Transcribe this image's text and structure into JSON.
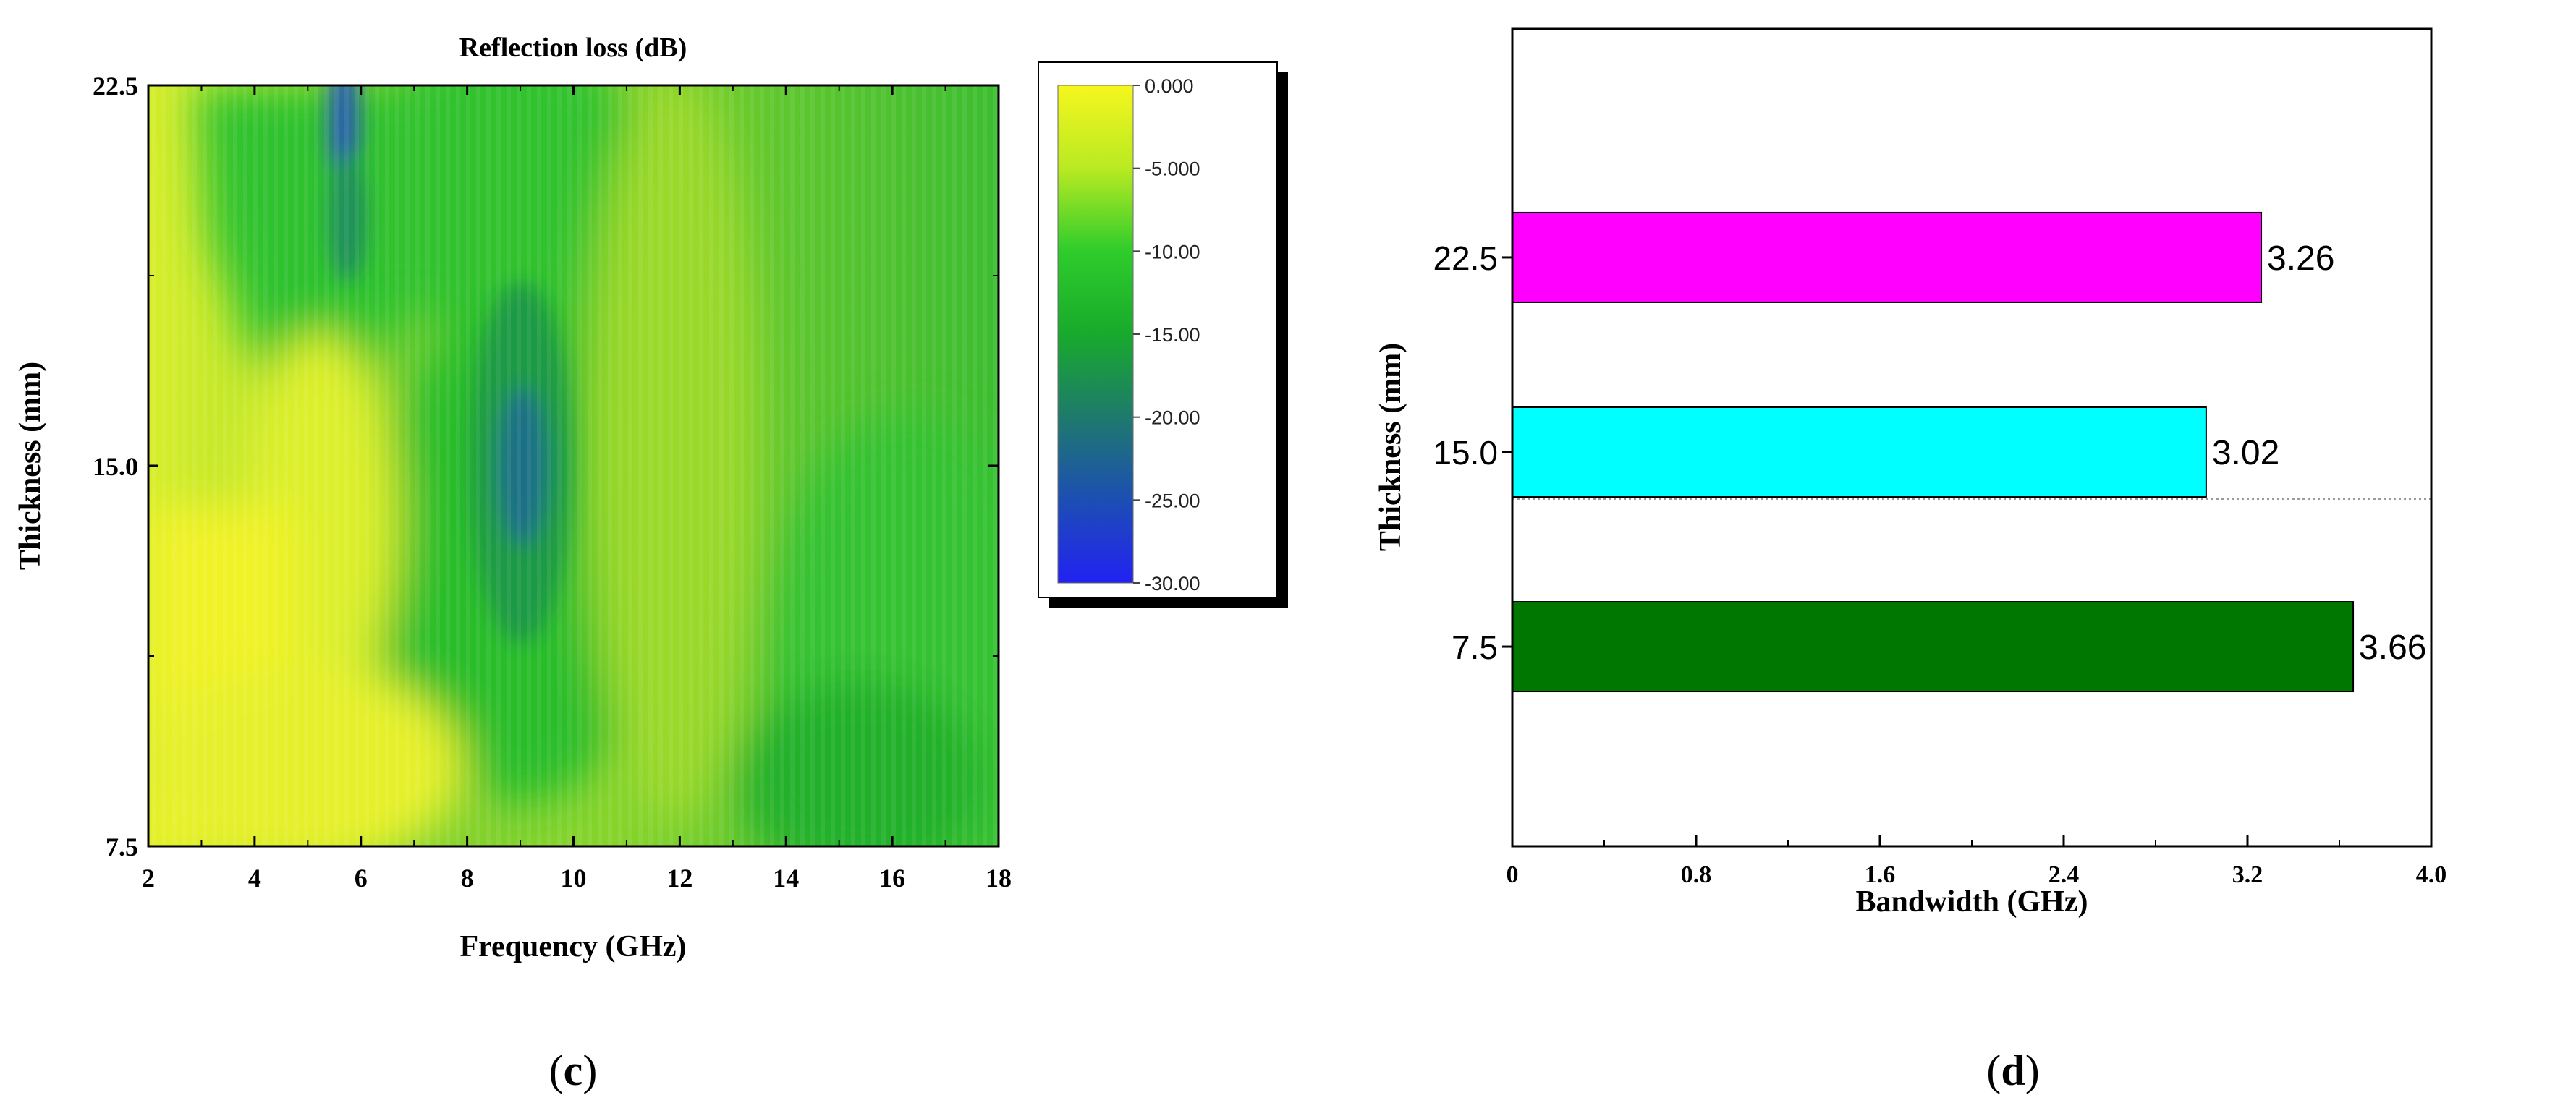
{
  "panels": {
    "c": {
      "label_open": "(",
      "label_letter": "c",
      "label_close": ")"
    },
    "d": {
      "label_open": "(",
      "label_letter": "d",
      "label_close": ")"
    }
  },
  "chart_data": [
    {
      "type": "heatmap",
      "title": "Reflection loss (dB)",
      "xlabel": "Frequency (GHz)",
      "ylabel": "Thickness (mm)",
      "xlim": [
        2,
        18
      ],
      "ylim": [
        7.5,
        22.5
      ],
      "x_ticks": [
        "2",
        "4",
        "6",
        "8",
        "10",
        "12",
        "14",
        "16",
        "18"
      ],
      "y_ticks": [
        "7.5",
        "15.0",
        "22.5"
      ],
      "x_tick_values": [
        2,
        4,
        6,
        8,
        10,
        12,
        14,
        16,
        18
      ],
      "y_tick_values": [
        7.5,
        15.0,
        22.5
      ],
      "colorbar": {
        "labels": [
          "0.000",
          "-5.000",
          "-10.00",
          "-15.00",
          "-20.00",
          "-25.00",
          "-30.00"
        ],
        "values": [
          0,
          -5,
          -10,
          -15,
          -20,
          -25,
          -30
        ],
        "range": [
          -30,
          0
        ],
        "colors": [
          "#f6f61e",
          "#b9ea22",
          "#2fcc2c",
          "#18aa2c",
          "#1e7a6c",
          "#1d4eb4",
          "#2222f2"
        ]
      },
      "features": [
        {
          "freq": 9.1,
          "thickness": 15.0,
          "rl": -24
        },
        {
          "freq": 5.8,
          "thickness": 22.5,
          "rl": -26
        },
        {
          "freq": 2.3,
          "thickness": 7.5,
          "rl": -1
        }
      ]
    },
    {
      "type": "bar",
      "orientation": "horizontal",
      "categories": [
        "7.5",
        "15.0",
        "22.5"
      ],
      "values": [
        3.66,
        3.02,
        3.26
      ],
      "data_labels": [
        "3.66",
        "3.02",
        "3.26"
      ],
      "colors": [
        "#007700",
        "#00ffff",
        "#ff00ff"
      ],
      "xlabel": "Bandwidth (GHz)",
      "ylabel": "Thickness (mm)",
      "xlim": [
        0,
        4.0
      ],
      "x_ticks": [
        "0",
        "0.8",
        "1.6",
        "2.4",
        "3.2",
        "4.0"
      ],
      "x_tick_values": [
        0,
        0.8,
        1.6,
        2.4,
        3.2,
        4.0
      ],
      "grid": false
    }
  ]
}
